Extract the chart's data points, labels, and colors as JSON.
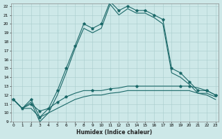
{
  "bg_color": "#cde8e8",
  "grid_color": "#a8cccc",
  "line_color": "#1a6868",
  "xlim": [
    -0.3,
    23.3
  ],
  "ylim": [
    9,
    22.3
  ],
  "xtick_labels": [
    "0",
    "1",
    "2",
    "3",
    "4",
    "5",
    "6",
    "7",
    "8",
    "9",
    "10",
    "11",
    "12",
    "13",
    "14",
    "15",
    "16",
    "17",
    "18",
    "19",
    "20",
    "21",
    "22",
    "23"
  ],
  "ytick_labels": [
    "9",
    "10",
    "11",
    "12",
    "13",
    "14",
    "15",
    "16",
    "17",
    "18",
    "19",
    "20",
    "21",
    "22"
  ],
  "xlabel": "Humidex (Indice chaleur)",
  "line1_y": [
    11.5,
    10.5,
    11.5,
    9.5,
    10.5,
    12.5,
    15.0,
    17.5,
    20.0,
    19.5,
    20.0,
    22.5,
    21.5,
    22.0,
    21.5,
    21.5,
    21.0,
    20.5,
    15.0,
    14.5,
    13.5,
    12.5,
    12.5,
    12.0
  ],
  "line1_markers_x": [
    0,
    1,
    2,
    3,
    4,
    5,
    6,
    7,
    8,
    9,
    10,
    11,
    12,
    13,
    14,
    15,
    16,
    17,
    18,
    19,
    20,
    21,
    22,
    23
  ],
  "line1_markers_y": [
    11.5,
    10.5,
    11.5,
    9.5,
    10.5,
    12.5,
    15.0,
    17.5,
    20.0,
    19.5,
    20.0,
    22.5,
    21.5,
    22.0,
    21.5,
    21.5,
    21.0,
    20.5,
    15.0,
    14.5,
    13.5,
    12.5,
    12.5,
    12.0
  ],
  "line2_y": [
    11.5,
    10.5,
    11.2,
    9.0,
    10.0,
    12.0,
    14.5,
    17.2,
    19.5,
    19.0,
    19.5,
    22.2,
    21.0,
    21.7,
    21.2,
    21.2,
    20.7,
    20.0,
    14.5,
    14.0,
    13.2,
    12.2,
    12.2,
    11.8
  ],
  "line3_y": [
    11.5,
    10.5,
    11.0,
    10.2,
    10.5,
    11.2,
    11.8,
    12.2,
    12.5,
    12.5,
    12.5,
    12.7,
    12.8,
    13.0,
    13.0,
    13.0,
    13.0,
    13.0,
    13.0,
    13.0,
    13.0,
    12.8,
    12.5,
    12.0
  ],
  "line3_markers_x": [
    0,
    2,
    3,
    5,
    6,
    9,
    11,
    14,
    19,
    20,
    22,
    23
  ],
  "line3_markers_y": [
    11.5,
    11.0,
    10.2,
    11.2,
    11.8,
    12.5,
    12.7,
    13.0,
    13.0,
    13.0,
    12.5,
    12.0
  ],
  "line4_y": [
    11.5,
    10.5,
    10.5,
    9.5,
    10.0,
    10.5,
    11.0,
    11.5,
    11.8,
    12.0,
    12.0,
    12.2,
    12.3,
    12.5,
    12.5,
    12.5,
    12.5,
    12.5,
    12.5,
    12.5,
    12.5,
    12.2,
    12.0,
    11.5
  ]
}
